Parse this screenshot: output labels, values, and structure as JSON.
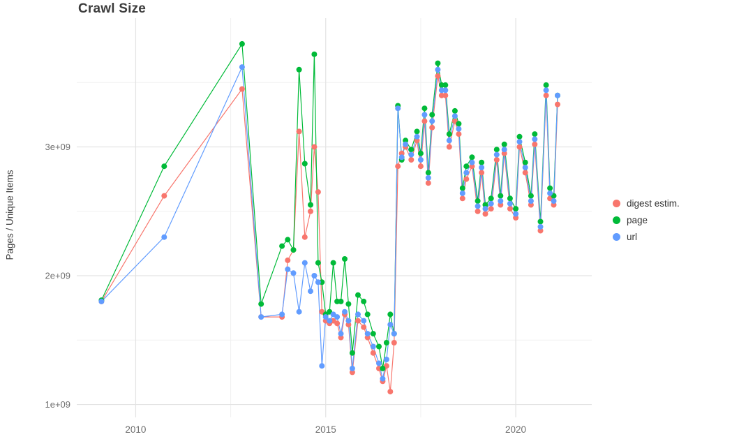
{
  "chart_data": {
    "type": "line",
    "title": "Crawl Size",
    "xlabel": "",
    "ylabel": "Pages / Unique Items",
    "grid": true,
    "legend_position": "right",
    "background_color": "#ffffff",
    "grid_major_color": "#e3e3e3",
    "grid_minor_color": "#f1f1f1",
    "axis_text_color": "#6e6e6e",
    "xlim": [
      2008.45,
      2022.0
    ],
    "ylim": [
      900000000.0,
      4000000000.0
    ],
    "x_ticks": {
      "values": [
        2010,
        2015,
        2020
      ],
      "labels": [
        "2010",
        "2015",
        "2020"
      ]
    },
    "y_ticks": {
      "values": [
        1000000000.0,
        2000000000.0,
        3000000000.0
      ],
      "labels": [
        "1e+09",
        "2e+09",
        "3e+09"
      ]
    },
    "x_minor": [
      2012.5,
      2017.5
    ],
    "y_minor": [
      1500000000.0,
      2500000000.0,
      3500000000.0
    ],
    "x": [
      2009.1,
      2010.75,
      2012.8,
      2013.3,
      2013.85,
      2014.0,
      2014.15,
      2014.3,
      2014.45,
      2014.6,
      2014.7,
      2014.8,
      2014.9,
      2015.0,
      2015.1,
      2015.2,
      2015.3,
      2015.4,
      2015.5,
      2015.6,
      2015.7,
      2015.85,
      2016.0,
      2016.1,
      2016.25,
      2016.4,
      2016.5,
      2016.6,
      2016.7,
      2016.8,
      2016.9,
      2017.0,
      2017.1,
      2017.25,
      2017.4,
      2017.5,
      2017.6,
      2017.7,
      2017.8,
      2017.95,
      2018.05,
      2018.15,
      2018.25,
      2018.4,
      2018.5,
      2018.6,
      2018.7,
      2018.85,
      2019.0,
      2019.1,
      2019.2,
      2019.35,
      2019.5,
      2019.6,
      2019.7,
      2019.85,
      2020.0,
      2020.1,
      2020.25,
      2020.4,
      2020.5,
      2020.65,
      2020.8,
      2020.9,
      2021.0,
      2021.1
    ],
    "series": [
      {
        "name": "digest estim.",
        "color": "#F8766D",
        "values": [
          1800000000.0,
          2620000000.0,
          3450000000.0,
          1680000000.0,
          1680000000.0,
          2120000000.0,
          2200000000.0,
          3120000000.0,
          2300000000.0,
          2500000000.0,
          3000000000.0,
          2650000000.0,
          1720000000.0,
          1650000000.0,
          1630000000.0,
          1650000000.0,
          1630000000.0,
          1520000000.0,
          1700000000.0,
          1620000000.0,
          1250000000.0,
          1650000000.0,
          1600000000.0,
          1520000000.0,
          1400000000.0,
          1280000000.0,
          1180000000.0,
          1300000000.0,
          1100000000.0,
          1480000000.0,
          2850000000.0,
          2950000000.0,
          3000000000.0,
          2900000000.0,
          3050000000.0,
          2850000000.0,
          3200000000.0,
          2720000000.0,
          3150000000.0,
          3550000000.0,
          3400000000.0,
          3400000000.0,
          3000000000.0,
          3200000000.0,
          3100000000.0,
          2600000000.0,
          2750000000.0,
          2850000000.0,
          2500000000.0,
          2800000000.0,
          2480000000.0,
          2520000000.0,
          2900000000.0,
          2550000000.0,
          2950000000.0,
          2520000000.0,
          2450000000.0,
          3000000000.0,
          2800000000.0,
          2550000000.0,
          3020000000.0,
          2350000000.0,
          3400000000.0,
          2600000000.0,
          2550000000.0,
          3330000000.0
        ]
      },
      {
        "name": "page",
        "color": "#00BA38",
        "values": [
          1810000000.0,
          2850000000.0,
          3800000000.0,
          1780000000.0,
          2230000000.0,
          2280000000.0,
          2200000000.0,
          3600000000.0,
          2870000000.0,
          2550000000.0,
          3720000000.0,
          2100000000.0,
          1950000000.0,
          1700000000.0,
          1720000000.0,
          2100000000.0,
          1800000000.0,
          1800000000.0,
          2130000000.0,
          1780000000.0,
          1400000000.0,
          1850000000.0,
          1800000000.0,
          1700000000.0,
          1550000000.0,
          1450000000.0,
          1280000000.0,
          1480000000.0,
          1700000000.0,
          1550000000.0,
          3320000000.0,
          2900000000.0,
          3050000000.0,
          2980000000.0,
          3120000000.0,
          2950000000.0,
          3300000000.0,
          2800000000.0,
          3250000000.0,
          3650000000.0,
          3480000000.0,
          3480000000.0,
          3100000000.0,
          3280000000.0,
          3180000000.0,
          2680000000.0,
          2850000000.0,
          2920000000.0,
          2580000000.0,
          2880000000.0,
          2550000000.0,
          2600000000.0,
          2980000000.0,
          2620000000.0,
          3020000000.0,
          2600000000.0,
          2520000000.0,
          3080000000.0,
          2880000000.0,
          2620000000.0,
          3100000000.0,
          2420000000.0,
          3480000000.0,
          2680000000.0,
          2620000000.0,
          3400000000.0
        ]
      },
      {
        "name": "url",
        "color": "#619CFF",
        "values": [
          1800000000.0,
          2300000000.0,
          3620000000.0,
          1680000000.0,
          1700000000.0,
          2050000000.0,
          2020000000.0,
          1720000000.0,
          2100000000.0,
          1880000000.0,
          2000000000.0,
          1950000000.0,
          1300000000.0,
          1680000000.0,
          1650000000.0,
          1700000000.0,
          1680000000.0,
          1550000000.0,
          1720000000.0,
          1650000000.0,
          1280000000.0,
          1700000000.0,
          1650000000.0,
          1550000000.0,
          1450000000.0,
          1320000000.0,
          1200000000.0,
          1350000000.0,
          1620000000.0,
          1550000000.0,
          3300000000.0,
          2920000000.0,
          3020000000.0,
          2940000000.0,
          3080000000.0,
          2900000000.0,
          3250000000.0,
          2760000000.0,
          3200000000.0,
          3600000000.0,
          3440000000.0,
          3440000000.0,
          3050000000.0,
          3240000000.0,
          3140000000.0,
          2640000000.0,
          2800000000.0,
          2880000000.0,
          2540000000.0,
          2840000000.0,
          2520000000.0,
          2560000000.0,
          2940000000.0,
          2580000000.0,
          2980000000.0,
          2560000000.0,
          2480000000.0,
          3040000000.0,
          2840000000.0,
          2580000000.0,
          3060000000.0,
          2380000000.0,
          3440000000.0,
          2640000000.0,
          2580000000.0,
          3400000000.0
        ]
      }
    ]
  }
}
